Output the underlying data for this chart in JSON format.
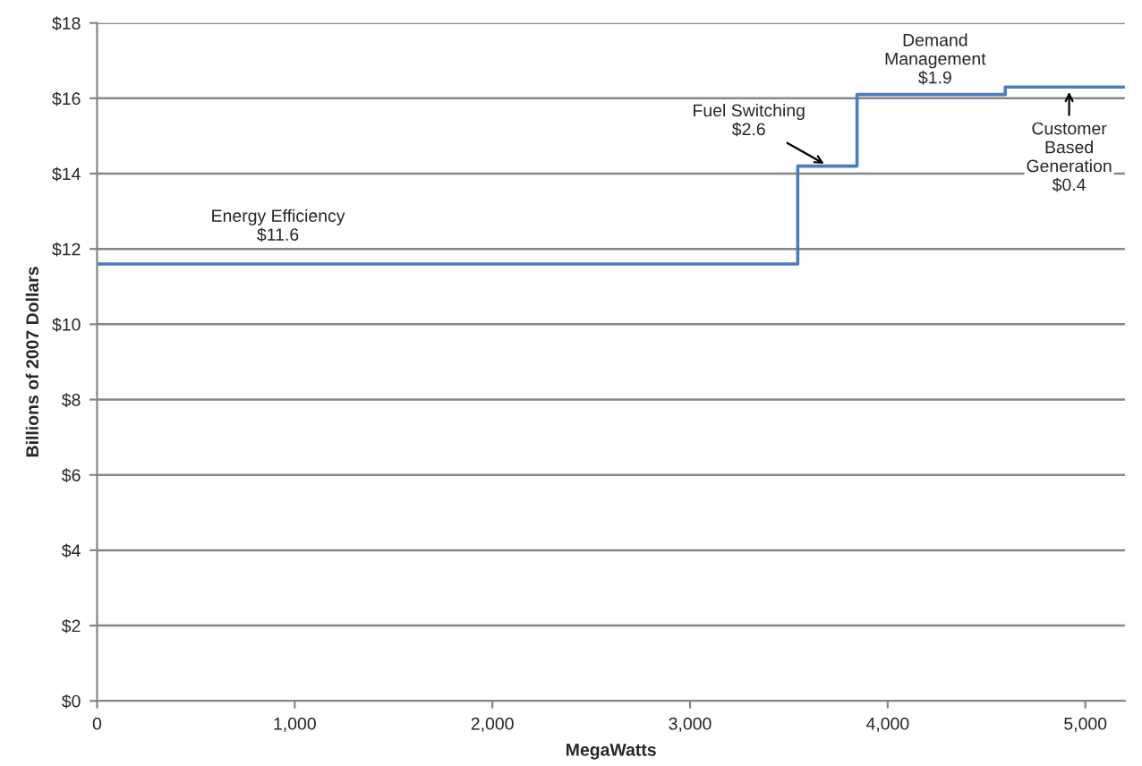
{
  "chart_data": {
    "type": "step",
    "xlabel": "MegaWatts",
    "ylabel": "Billions of 2007 Dollars",
    "x": [
      0,
      3545,
      3845,
      4595,
      5200
    ],
    "series": [
      {
        "color": "#4a7ebb",
        "values": [
          11.6,
          14.2,
          16.1,
          16.3,
          16.3
        ]
      }
    ],
    "xlim": [
      0,
      5200
    ],
    "xticks": [
      {
        "value": 0,
        "label": "0"
      },
      {
        "value": 1000,
        "label": "1,000"
      },
      {
        "value": 2000,
        "label": "2,000"
      },
      {
        "value": 3000,
        "label": "3,000"
      },
      {
        "value": 4000,
        "label": "4,000"
      },
      {
        "value": 5000,
        "label": "5,000"
      }
    ],
    "ylim": [
      0,
      18
    ],
    "yticks": [
      {
        "value": 0,
        "label": "$0"
      },
      {
        "value": 2,
        "label": "$2"
      },
      {
        "value": 4,
        "label": "$4"
      },
      {
        "value": 6,
        "label": "$6"
      },
      {
        "value": 8,
        "label": "$8"
      },
      {
        "value": 10,
        "label": "$10"
      },
      {
        "value": 12,
        "label": "$12"
      },
      {
        "value": 14,
        "label": "$14"
      },
      {
        "value": 16,
        "label": "$16"
      },
      {
        "value": 18,
        "label": "$18"
      }
    ],
    "grid": "y",
    "annotations": [
      {
        "text": "Energy Efficiency\n$11.6",
        "x": 915,
        "y": 11.6
      },
      {
        "text": "Fuel Switching\n$2.6",
        "x": 3700,
        "y": 14.2
      },
      {
        "text": "Demand\nManagement\n$1.9",
        "x": 4240,
        "y": 16.1
      },
      {
        "text": "Customer\nBased\nGeneration\n$0.4",
        "x": 4918,
        "y": 16.3
      }
    ]
  }
}
